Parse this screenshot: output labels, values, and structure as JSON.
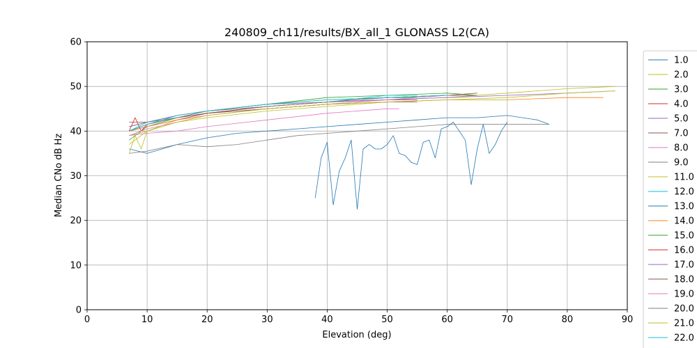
{
  "chart_data": {
    "type": "line",
    "title": "240809_ch11/results/BX_all_1 GLONASS L2(CA)",
    "xlabel": "Elevation (deg)",
    "ylabel": "Median CNo dB Hz",
    "xlim": [
      0,
      90
    ],
    "ylim": [
      0,
      60
    ],
    "xticks": [
      "0",
      "10",
      "20",
      "30",
      "40",
      "50",
      "60",
      "70",
      "80",
      "90"
    ],
    "yticks": [
      "0",
      "10",
      "20",
      "30",
      "40",
      "50",
      "60"
    ],
    "grid": true,
    "legend_position": "right (outside plot, clipped at bottom)",
    "series": [
      {
        "name": "1.0",
        "color": "#1f77b4",
        "x": [
          7,
          10,
          15,
          20,
          25,
          30,
          35,
          40,
          45,
          50,
          55,
          60,
          65,
          70,
          75,
          77
        ],
        "y": [
          36,
          35,
          37,
          38.5,
          39.5,
          40,
          40.5,
          41,
          41.5,
          42,
          42.5,
          43,
          43,
          43.5,
          42.5,
          41.5
        ]
      },
      {
        "name": "2.0",
        "color": "#bcbd22",
        "x": [
          7,
          10,
          15,
          20,
          30,
          40,
          50,
          60,
          70,
          80,
          88
        ],
        "y": [
          37,
          40,
          42.5,
          44,
          45,
          46,
          47,
          47.5,
          48.5,
          49.5,
          50
        ]
      },
      {
        "name": "3.0",
        "color": "#2ca02c",
        "x": [
          7,
          10,
          15,
          20,
          30,
          40,
          50,
          60,
          65
        ],
        "y": [
          38,
          41,
          43,
          44.5,
          46,
          47.5,
          48,
          48.5,
          48
        ]
      },
      {
        "name": "4.0",
        "color": "#d62728",
        "x": [
          7,
          10,
          15,
          20,
          30,
          40,
          50,
          60,
          65
        ],
        "y": [
          41,
          42,
          43,
          44,
          45.5,
          46.5,
          47.5,
          48,
          48
        ]
      },
      {
        "name": "5.0",
        "color": "#9467bd",
        "x": [
          7,
          10,
          15,
          20,
          30,
          40,
          50,
          60,
          70,
          80,
          88
        ],
        "y": [
          40,
          41,
          42.5,
          44,
          45.5,
          46.5,
          47,
          47.5,
          48,
          48.5,
          49
        ]
      },
      {
        "name": "7.0",
        "color": "#8c564b",
        "x": [
          7,
          10,
          15,
          20,
          30,
          40,
          50,
          60,
          65
        ],
        "y": [
          42,
          42,
          43,
          44,
          45.5,
          46.5,
          47.5,
          48,
          48.5
        ]
      },
      {
        "name": "8.0",
        "color": "#e377c2",
        "x": [
          7,
          10,
          15,
          20,
          30,
          40,
          50,
          52
        ],
        "y": [
          39,
          39.5,
          40,
          41,
          42.5,
          44,
          45,
          45
        ]
      },
      {
        "name": "9.0",
        "color": "#7f7f7f",
        "x": [
          7,
          10,
          15,
          20,
          25,
          30,
          35,
          40,
          45,
          50,
          55,
          60,
          65,
          70,
          75,
          77
        ],
        "y": [
          35,
          35.5,
          37,
          36.5,
          37,
          38,
          39,
          39.5,
          40,
          40.5,
          41,
          41.5,
          41.5,
          41.5,
          41.5,
          41.5
        ]
      },
      {
        "name": "11.0",
        "color": "#bcbd22",
        "x": [
          7,
          10,
          15,
          20,
          30,
          40,
          50,
          60,
          70,
          80,
          88
        ],
        "y": [
          39,
          40,
          42,
          43,
          44.5,
          45.5,
          46.5,
          47,
          47.5,
          48.5,
          49
        ]
      },
      {
        "name": "12.0",
        "color": "#17becf",
        "x": [
          7,
          10,
          15,
          20,
          30,
          40,
          50,
          55
        ],
        "y": [
          40,
          42,
          43,
          44.5,
          45.5,
          46.5,
          48,
          48
        ]
      },
      {
        "name": "13.0",
        "color": "#1f77b4",
        "x": [
          38,
          39,
          40,
          41,
          42,
          43,
          44,
          45,
          46,
          47,
          48,
          49,
          50,
          51,
          52,
          53,
          54,
          55,
          56,
          57,
          58,
          59,
          60,
          61,
          62,
          63,
          64,
          65,
          66,
          67,
          68,
          69,
          70
        ],
        "y": [
          25,
          34,
          37.5,
          23.5,
          31,
          34,
          38,
          22.5,
          36,
          37,
          36,
          36,
          37,
          39,
          35,
          34.5,
          33,
          32.5,
          37.5,
          38,
          34,
          40.5,
          41,
          42,
          40,
          38,
          28,
          36,
          41.5,
          35,
          37,
          40,
          42
        ]
      },
      {
        "name": "14.0",
        "color": "#ff7f0e",
        "x": [
          7,
          10,
          15,
          20,
          30,
          40,
          50,
          60,
          70,
          80,
          86
        ],
        "y": [
          40,
          41,
          42.5,
          43.5,
          45,
          46,
          46.5,
          47,
          47,
          47.5,
          47.5
        ]
      },
      {
        "name": "15.0",
        "color": "#2ca02c",
        "x": [
          7,
          10,
          15,
          20,
          30,
          40,
          50,
          55
        ],
        "y": [
          41,
          42,
          43.5,
          44.5,
          46,
          47,
          47.5,
          47.5
        ]
      },
      {
        "name": "16.0",
        "color": "#d62728",
        "x": [
          7,
          8,
          9,
          10,
          15,
          20,
          30,
          40,
          50,
          55
        ],
        "y": [
          40,
          43,
          40,
          41.5,
          43.5,
          44.5,
          45.5,
          46.5,
          47,
          47
        ]
      },
      {
        "name": "17.0",
        "color": "#9467bd",
        "x": [
          7,
          10,
          15,
          20,
          30,
          40,
          50,
          55
        ],
        "y": [
          41,
          42,
          43.5,
          44.5,
          46,
          46.5,
          47,
          47
        ]
      },
      {
        "name": "18.0",
        "color": "#8c564b",
        "x": [
          7,
          10,
          15,
          20,
          30,
          40,
          50,
          55
        ],
        "y": [
          40,
          41.5,
          43,
          44,
          45,
          46,
          46.5,
          46.5
        ]
      },
      {
        "name": "19.0",
        "color": "#e377c2",
        "x": [
          7,
          10,
          15,
          20,
          30,
          40,
          50,
          60
        ],
        "y": [
          39,
          40.5,
          42,
          43.5,
          45,
          46,
          47,
          48
        ]
      },
      {
        "name": "20.0",
        "color": "#7f7f7f",
        "x": [
          7,
          10,
          15,
          20,
          30,
          40,
          50,
          60,
          65
        ],
        "y": [
          40,
          41.5,
          43,
          44.5,
          45.5,
          46.5,
          47.5,
          48,
          48
        ]
      },
      {
        "name": "21.0",
        "color": "#bcbd22",
        "x": [
          7,
          8,
          9,
          10,
          15,
          20,
          30,
          40,
          50,
          60,
          70
        ],
        "y": [
          35,
          39,
          36,
          40,
          42,
          43.5,
          45,
          46,
          46.5,
          47,
          47
        ]
      },
      {
        "name": "22.0",
        "color": "#17becf",
        "x": [
          7,
          10,
          15,
          20,
          30,
          40,
          50,
          60
        ],
        "y": [
          40,
          41.5,
          43.5,
          44.5,
          46,
          47,
          47.5,
          48
        ]
      }
    ]
  }
}
